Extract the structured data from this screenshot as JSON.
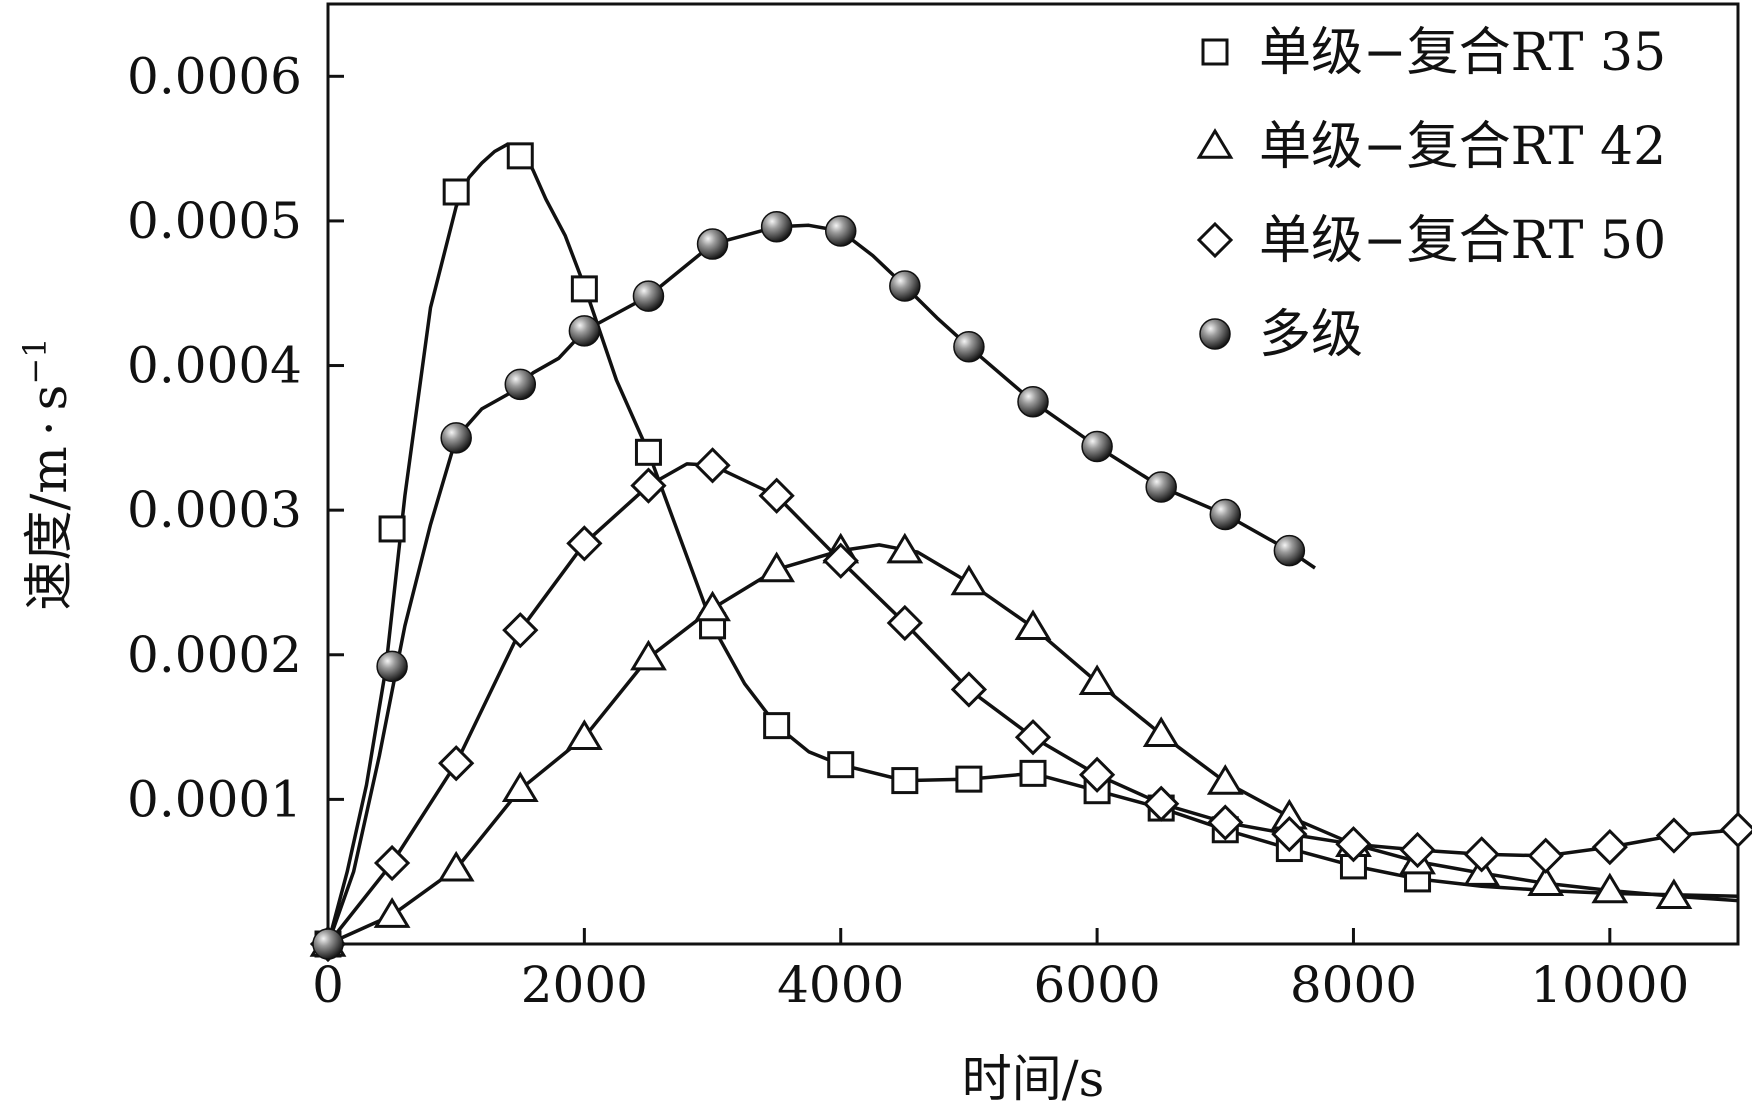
{
  "chart_data": {
    "type": "line",
    "title": "",
    "xlabel": "时间/s",
    "ylabel": "速度/m",
    "ylabel_unit_base": "s",
    "ylabel_unit_exp": "−1",
    "xlim": [
      0,
      11000
    ],
    "ylim": [
      0,
      0.00065
    ],
    "x_ticks": [
      0,
      2000,
      4000,
      6000,
      8000,
      10000
    ],
    "x_tick_labels": [
      "0",
      "2000",
      "4000",
      "6000",
      "8000",
      "10000"
    ],
    "y_ticks": [
      0.0001,
      0.0002,
      0.0003,
      0.0004,
      0.0005,
      0.0006
    ],
    "y_tick_labels": [
      "0.0001",
      "0.0002",
      "0.0003",
      "0.0004",
      "0.0005",
      "0.0006"
    ],
    "grid": false,
    "legend_position": "top-right",
    "series": [
      {
        "name": "单级−复合RT 35",
        "marker": "square",
        "x": [
          0,
          500,
          1000,
          1500,
          2000,
          2500,
          3000,
          3500,
          4000,
          4500,
          5000,
          5500,
          6000,
          6500,
          7000,
          7500,
          8000,
          8500
        ],
        "y": [
          0.0,
          0.000287,
          0.00052,
          0.000545,
          0.000453,
          0.00034,
          0.00022,
          0.000151,
          0.000124,
          0.000113,
          0.000114,
          0.000118,
          0.000106,
          9.4e-05,
          7.9e-05,
          6.6e-05,
          5.4e-05,
          4.5e-05
        ],
        "line_x": [
          0,
          150,
          300,
          450,
          600,
          800,
          1000,
          1100,
          1200,
          1300,
          1400,
          1500,
          1600,
          1700,
          1850,
          2000,
          2250,
          2500,
          2750,
          3000,
          3250,
          3500,
          3750,
          4000,
          4500,
          5000,
          5500,
          6000,
          6500,
          7000,
          7500,
          8000,
          8500,
          9000,
          9500,
          10000,
          10500,
          11000
        ],
        "line_y": [
          0.0,
          5e-05,
          0.00011,
          0.00019,
          0.00031,
          0.00044,
          0.00051,
          0.00053,
          0.00054,
          0.000548,
          0.000553,
          0.000552,
          0.000535,
          0.000515,
          0.00049,
          0.000455,
          0.00039,
          0.00034,
          0.00028,
          0.00022,
          0.00018,
          0.000151,
          0.000133,
          0.000124,
          0.000113,
          0.000114,
          0.000118,
          0.000106,
          9.4e-05,
          7.9e-05,
          6.6e-05,
          5.4e-05,
          4.5e-05,
          4e-05,
          3.7e-05,
          3.5e-05,
          3.4e-05,
          3.3e-05
        ]
      },
      {
        "name": "单级−复合RT 42",
        "marker": "triangle",
        "x": [
          0,
          500,
          1000,
          1500,
          2000,
          2500,
          3000,
          3500,
          4000,
          4500,
          5000,
          5500,
          6000,
          6500,
          7000,
          7500,
          8000,
          8500,
          9000,
          9500,
          10000,
          10500
        ],
        "y": [
          0.0,
          2e-05,
          5.2e-05,
          0.000107,
          0.000143,
          0.000198,
          0.000232,
          0.000259,
          0.000272,
          0.000272,
          0.00025,
          0.000219,
          0.000181,
          0.000145,
          0.000112,
          8.8e-05,
          6.9e-05,
          5.7e-05,
          4.9e-05,
          4.2e-05,
          3.7e-05,
          3.3e-05
        ],
        "line_x": [
          0,
          500,
          1000,
          1500,
          2000,
          2500,
          3000,
          3500,
          4000,
          4300,
          4600,
          5000,
          5500,
          6000,
          6500,
          7000,
          7500,
          8000,
          8500,
          9000,
          9500,
          10000,
          10500,
          11000
        ],
        "line_y": [
          0.0,
          2e-05,
          5.2e-05,
          0.000107,
          0.000143,
          0.000198,
          0.000232,
          0.000259,
          0.000272,
          0.000276,
          0.000271,
          0.00025,
          0.000219,
          0.000181,
          0.000145,
          0.000112,
          8.8e-05,
          6.9e-05,
          5.7e-05,
          4.9e-05,
          4.2e-05,
          3.7e-05,
          3.3e-05,
          3e-05
        ]
      },
      {
        "name": "单级−复合RT 50",
        "marker": "diamond",
        "x": [
          0,
          500,
          1000,
          1500,
          2000,
          2500,
          3000,
          3500,
          4000,
          4500,
          5000,
          5500,
          6000,
          6500,
          7000,
          7500,
          8000,
          8500,
          9000,
          9500,
          10000,
          10500,
          11000
        ],
        "y": [
          0.0,
          5.6e-05,
          0.000125,
          0.000217,
          0.000277,
          0.000317,
          0.000331,
          0.00031,
          0.000265,
          0.000222,
          0.000176,
          0.000143,
          0.000117,
          9.7e-05,
          8.4e-05,
          7.6e-05,
          6.9e-05,
          6.5e-05,
          6.2e-05,
          6.1e-05,
          6.7e-05,
          7.5e-05,
          7.9e-05
        ],
        "line_x": [
          0,
          500,
          1000,
          1500,
          2000,
          2500,
          2800,
          3000,
          3500,
          4000,
          4500,
          5000,
          5500,
          6000,
          6500,
          7000,
          7500,
          8000,
          8500,
          9000,
          9500,
          10000,
          10500,
          11000
        ],
        "line_y": [
          0.0,
          5.6e-05,
          0.000125,
          0.000217,
          0.000277,
          0.000317,
          0.000332,
          0.000331,
          0.00031,
          0.000265,
          0.000222,
          0.000176,
          0.000143,
          0.000117,
          9.7e-05,
          8.4e-05,
          7.6e-05,
          6.9e-05,
          6.5e-05,
          6.2e-05,
          6.1e-05,
          6.7e-05,
          7.5e-05,
          7.9e-05
        ]
      },
      {
        "name": "多级",
        "marker": "sphere",
        "x": [
          0,
          500,
          1000,
          1500,
          2000,
          2500,
          3000,
          3500,
          4000,
          4500,
          5000,
          5500,
          6000,
          6500,
          7000,
          7500
        ],
        "y": [
          0.0,
          0.000192,
          0.00035,
          0.000387,
          0.000424,
          0.000448,
          0.000484,
          0.000496,
          0.000493,
          0.000455,
          0.000413,
          0.000375,
          0.000344,
          0.000316,
          0.000297,
          0.000272
        ],
        "line_x": [
          0,
          200,
          400,
          600,
          800,
          1000,
          1200,
          1400,
          1500,
          1600,
          1800,
          2000,
          2250,
          2500,
          2750,
          3000,
          3250,
          3500,
          3750,
          4000,
          4250,
          4500,
          4750,
          5000,
          5500,
          6000,
          6500,
          7000,
          7500,
          7700
        ],
        "line_y": [
          0.0,
          5e-05,
          0.00013,
          0.00022,
          0.00029,
          0.00035,
          0.00037,
          0.00038,
          0.000387,
          0.000395,
          0.000405,
          0.000424,
          0.000436,
          0.000448,
          0.000466,
          0.000484,
          0.00049,
          0.000496,
          0.000497,
          0.000493,
          0.000476,
          0.000455,
          0.000433,
          0.000413,
          0.000375,
          0.000344,
          0.000316,
          0.000297,
          0.000272,
          0.00026
        ]
      }
    ]
  }
}
